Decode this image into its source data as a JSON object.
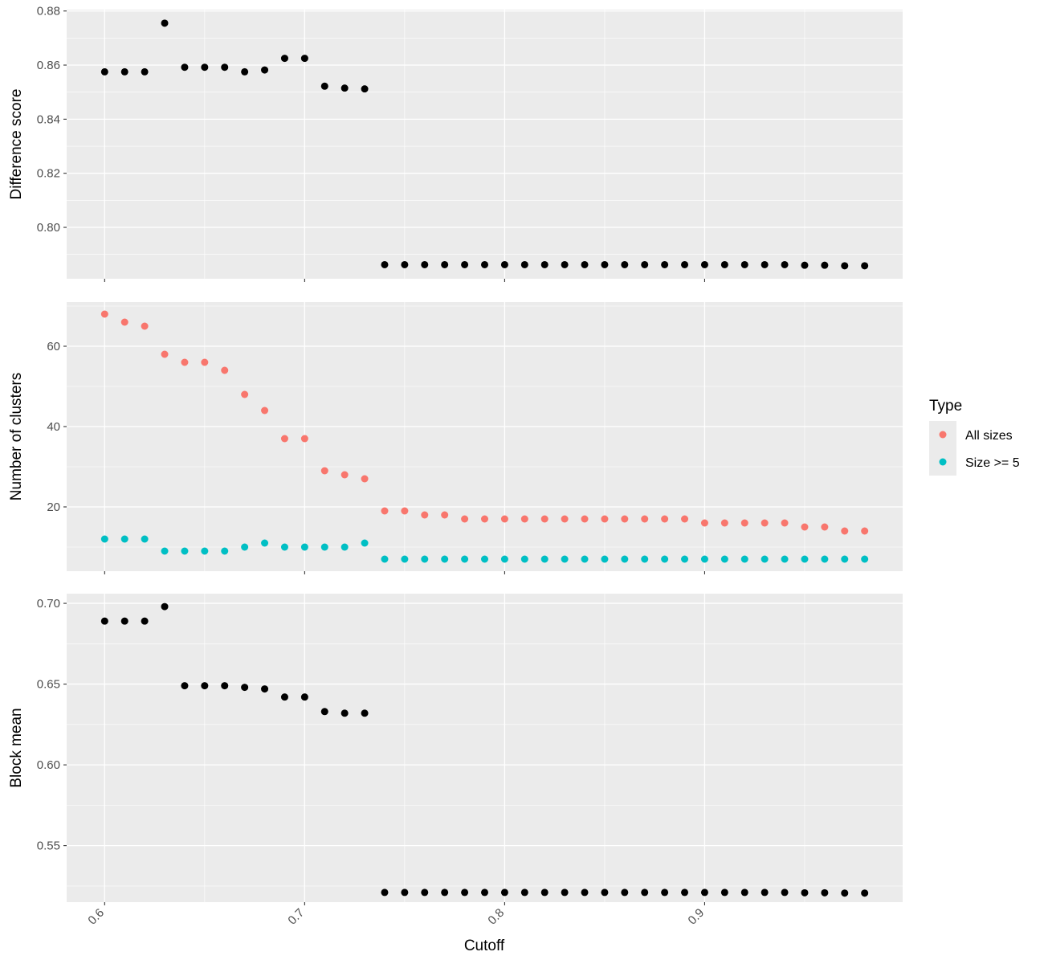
{
  "chart_data": {
    "type": "scatter",
    "x": [
      0.6,
      0.61,
      0.62,
      0.63,
      0.64,
      0.65,
      0.66,
      0.67,
      0.68,
      0.69,
      0.7,
      0.71,
      0.72,
      0.73,
      0.74,
      0.75,
      0.76,
      0.77,
      0.78,
      0.79,
      0.8,
      0.81,
      0.82,
      0.83,
      0.84,
      0.85,
      0.86,
      0.87,
      0.88,
      0.89,
      0.9,
      0.91,
      0.92,
      0.93,
      0.94,
      0.95,
      0.96,
      0.97,
      0.98
    ],
    "xlabel": "Cutoff",
    "xlim": [
      0.581,
      0.999
    ],
    "x_ticks": [
      0.6,
      0.7,
      0.8,
      0.9
    ],
    "x_tick_labels": [
      "0.6",
      "0.7",
      "0.8",
      "0.9"
    ],
    "panels": [
      {
        "ylabel": "Difference score",
        "ylim": [
          0.781,
          0.8805
        ],
        "y_ticks": [
          0.8,
          0.82,
          0.84,
          0.86,
          0.88
        ],
        "y_tick_labels": [
          "0.80",
          "0.82",
          "0.84",
          "0.86",
          "0.88"
        ],
        "series": [
          {
            "color": "#000000",
            "values": [
              0.8575,
              0.8575,
              0.8575,
              0.8755,
              0.8592,
              0.8592,
              0.8592,
              0.8575,
              0.8582,
              0.8625,
              0.8625,
              0.8522,
              0.8515,
              0.8512,
              0.7862,
              0.7862,
              0.7862,
              0.7862,
              0.7862,
              0.7862,
              0.7862,
              0.7862,
              0.7862,
              0.7862,
              0.7862,
              0.7862,
              0.7862,
              0.7862,
              0.7862,
              0.7862,
              0.7862,
              0.7862,
              0.7862,
              0.7862,
              0.7862,
              0.786,
              0.786,
              0.7858,
              0.7858
            ]
          }
        ]
      },
      {
        "ylabel": "Number of clusters",
        "ylim": [
          4,
          71
        ],
        "y_ticks": [
          20,
          40,
          60
        ],
        "y_tick_labels": [
          "20",
          "40",
          "60"
        ],
        "series": [
          {
            "name": "All sizes",
            "color": "#F8766D",
            "values": [
              68,
              66,
              65,
              58,
              56,
              56,
              54,
              48,
              44,
              37,
              37,
              29,
              28,
              27,
              19,
              19,
              18,
              18,
              17,
              17,
              17,
              17,
              17,
              17,
              17,
              17,
              17,
              17,
              17,
              17,
              16,
              16,
              16,
              16,
              16,
              15,
              15,
              14,
              14
            ]
          },
          {
            "name": "Size >= 5",
            "color": "#00BFC4",
            "values": [
              12,
              12,
              12,
              9,
              9,
              9,
              9,
              10,
              11,
              10,
              10,
              10,
              10,
              11,
              7,
              7,
              7,
              7,
              7,
              7,
              7,
              7,
              7,
              7,
              7,
              7,
              7,
              7,
              7,
              7,
              7,
              7,
              7,
              7,
              7,
              7,
              7,
              7,
              7
            ]
          }
        ]
      },
      {
        "ylabel": "Block mean",
        "ylim": [
          0.515,
          0.706
        ],
        "y_ticks": [
          0.55,
          0.6,
          0.65,
          0.7
        ],
        "y_tick_labels": [
          "0.55",
          "0.60",
          "0.65",
          "0.70"
        ],
        "series": [
          {
            "color": "#000000",
            "values": [
              0.689,
              0.689,
              0.689,
              0.698,
              0.649,
              0.649,
              0.649,
              0.648,
              0.647,
              0.642,
              0.642,
              0.633,
              0.632,
              0.632,
              0.521,
              0.521,
              0.521,
              0.521,
              0.521,
              0.521,
              0.521,
              0.521,
              0.521,
              0.521,
              0.521,
              0.521,
              0.521,
              0.521,
              0.521,
              0.521,
              0.521,
              0.521,
              0.521,
              0.521,
              0.521,
              0.5208,
              0.5208,
              0.5206,
              0.5206
            ]
          }
        ]
      }
    ],
    "legend": {
      "title": "Type",
      "placement": "right",
      "entries": [
        {
          "label": "All sizes",
          "color": "#F8766D"
        },
        {
          "label": "Size >= 5",
          "color": "#00BFC4"
        }
      ]
    },
    "grid": true,
    "panel_background": "#EBEBEB"
  }
}
